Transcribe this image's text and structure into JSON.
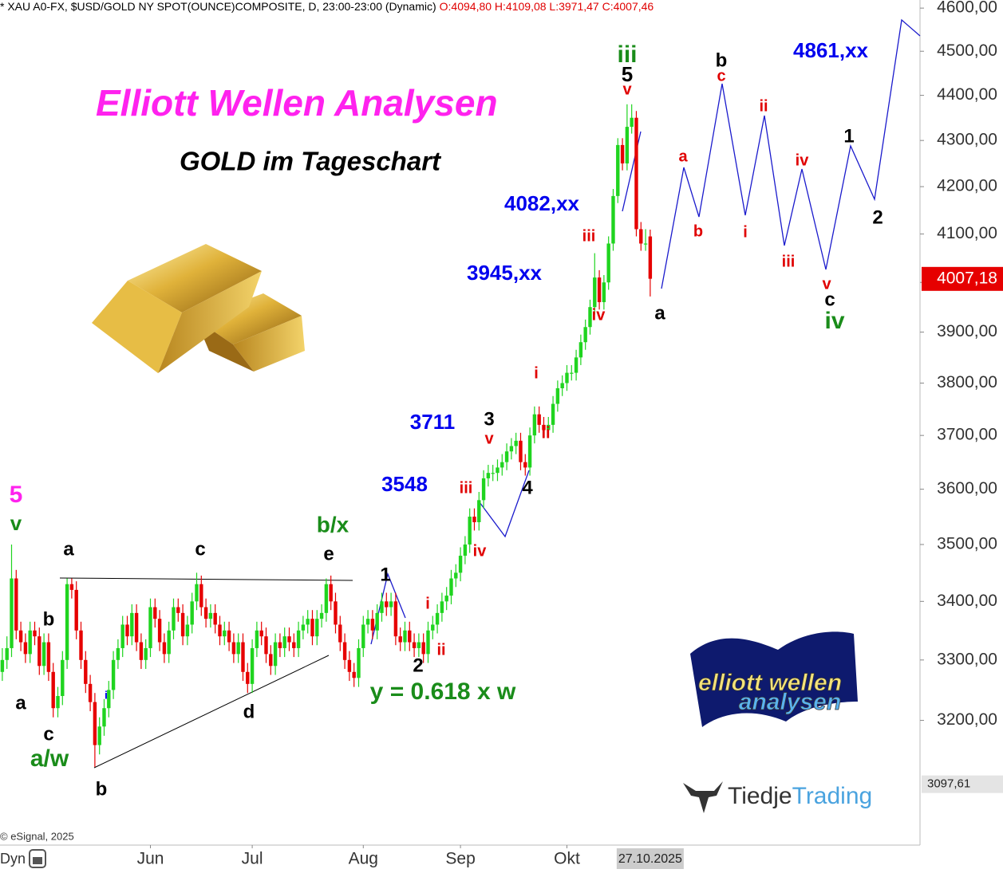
{
  "chart_data": {
    "type": "candlestick",
    "header": "* XAU A0-FX, $USD/GOLD NY SPOT(OUNCE)COMPOSITE, D, 23:00-23:00 (Dynamic)",
    "header_ohlc": "O:4094,80 H:4109,08 L:3971,47 C:4007,46",
    "title": "Elliott Wellen Analysen",
    "subtitle": "GOLD im Tageschart",
    "up_color": "#1fd41f",
    "down_color": "#e60000",
    "log_scale": true,
    "grid": false,
    "ylim": [
      3003,
      4619
    ],
    "yticks": [
      {
        "value": 3200,
        "label": "3200,00"
      },
      {
        "value": 3300,
        "label": "3300,00"
      },
      {
        "value": 3400,
        "label": "3400,00"
      },
      {
        "value": 3500,
        "label": "3500,00"
      },
      {
        "value": 3600,
        "label": "3600,00"
      },
      {
        "value": 3700,
        "label": "3700,00"
      },
      {
        "value": 3800,
        "label": "3800,00"
      },
      {
        "value": 3900,
        "label": "3900,00"
      },
      {
        "value": 4000,
        "label": "4000,00"
      },
      {
        "value": 4100,
        "label": "4100,00"
      },
      {
        "value": 4200,
        "label": "4200,00"
      },
      {
        "value": 4300,
        "label": "4300,00"
      },
      {
        "value": 4400,
        "label": "4400,00"
      },
      {
        "value": 4500,
        "label": "4500,00"
      },
      {
        "value": 4600,
        "label": "4600,00"
      }
    ],
    "xlim": [
      -0.5,
      198.3
    ],
    "xticks": [
      {
        "value": 32,
        "label": "Jun"
      },
      {
        "value": 54,
        "label": "Jul"
      },
      {
        "value": 78,
        "label": "Aug"
      },
      {
        "value": 99,
        "label": "Sep"
      },
      {
        "value": 122,
        "label": "Okt"
      }
    ],
    "date_marker": {
      "value": 140,
      "label": "27.10.2025"
    },
    "price_markers": [
      {
        "value": 4007.18,
        "label": "4007,18",
        "color": "#e60000"
      },
      {
        "value": 3097.61,
        "label": "3097,61",
        "color": "#e4e4e4"
      }
    ],
    "ohlc": [
      [
        3280,
        3320,
        3265,
        3300
      ],
      [
        3300,
        3340,
        3285,
        3320
      ],
      [
        3320,
        3500,
        3305,
        3440
      ],
      [
        3440,
        3455,
        3335,
        3350
      ],
      [
        3350,
        3365,
        3315,
        3330
      ],
      [
        3330,
        3345,
        3295,
        3310
      ],
      [
        3310,
        3365,
        3295,
        3350
      ],
      [
        3350,
        3365,
        3325,
        3340
      ],
      [
        3340,
        3355,
        3275,
        3290
      ],
      [
        3290,
        3345,
        3275,
        3330
      ],
      [
        3330,
        3345,
        3265,
        3280
      ],
      [
        3280,
        3295,
        3205,
        3220
      ],
      [
        3220,
        3255,
        3205,
        3240
      ],
      [
        3240,
        3315,
        3225,
        3300
      ],
      [
        3300,
        3440,
        3285,
        3430
      ],
      [
        3430,
        3440,
        3405,
        3420
      ],
      [
        3420,
        3435,
        3335,
        3350
      ],
      [
        3350,
        3365,
        3285,
        3300
      ],
      [
        3300,
        3315,
        3245,
        3260
      ],
      [
        3260,
        3275,
        3215,
        3230
      ],
      [
        3230,
        3245,
        3125,
        3160
      ],
      [
        3160,
        3205,
        3145,
        3190
      ],
      [
        3190,
        3235,
        3175,
        3220
      ],
      [
        3220,
        3265,
        3205,
        3250
      ],
      [
        3250,
        3315,
        3235,
        3300
      ],
      [
        3300,
        3335,
        3285,
        3320
      ],
      [
        3320,
        3375,
        3305,
        3360
      ],
      [
        3360,
        3375,
        3325,
        3340
      ],
      [
        3340,
        3395,
        3325,
        3380
      ],
      [
        3380,
        3395,
        3315,
        3330
      ],
      [
        3330,
        3345,
        3285,
        3300
      ],
      [
        3300,
        3335,
        3285,
        3320
      ],
      [
        3320,
        3405,
        3305,
        3390
      ],
      [
        3390,
        3405,
        3355,
        3370
      ],
      [
        3370,
        3385,
        3315,
        3330
      ],
      [
        3330,
        3345,
        3295,
        3310
      ],
      [
        3310,
        3365,
        3295,
        3350
      ],
      [
        3350,
        3405,
        3335,
        3390
      ],
      [
        3390,
        3405,
        3365,
        3380
      ],
      [
        3380,
        3395,
        3325,
        3340
      ],
      [
        3340,
        3375,
        3325,
        3360
      ],
      [
        3360,
        3415,
        3345,
        3400
      ],
      [
        3400,
        3450,
        3385,
        3430
      ],
      [
        3430,
        3445,
        3375,
        3390
      ],
      [
        3390,
        3405,
        3355,
        3370
      ],
      [
        3370,
        3395,
        3355,
        3380
      ],
      [
        3380,
        3395,
        3345,
        3360
      ],
      [
        3360,
        3375,
        3325,
        3340
      ],
      [
        3340,
        3365,
        3325,
        3350
      ],
      [
        3350,
        3365,
        3315,
        3330
      ],
      [
        3330,
        3345,
        3295,
        3310
      ],
      [
        3310,
        3345,
        3295,
        3330
      ],
      [
        3330,
        3345,
        3265,
        3280
      ],
      [
        3280,
        3295,
        3245,
        3260
      ],
      [
        3260,
        3335,
        3245,
        3320
      ],
      [
        3320,
        3365,
        3305,
        3350
      ],
      [
        3350,
        3365,
        3325,
        3340
      ],
      [
        3340,
        3355,
        3295,
        3310
      ],
      [
        3310,
        3325,
        3275,
        3290
      ],
      [
        3290,
        3345,
        3275,
        3330
      ],
      [
        3330,
        3345,
        3305,
        3320
      ],
      [
        3320,
        3355,
        3305,
        3340
      ],
      [
        3340,
        3355,
        3315,
        3330
      ],
      [
        3330,
        3345,
        3305,
        3320
      ],
      [
        3320,
        3365,
        3305,
        3350
      ],
      [
        3350,
        3375,
        3335,
        3360
      ],
      [
        3360,
        3385,
        3345,
        3370
      ],
      [
        3370,
        3385,
        3325,
        3340
      ],
      [
        3340,
        3385,
        3325,
        3370
      ],
      [
        3370,
        3395,
        3355,
        3380
      ],
      [
        3380,
        3440,
        3365,
        3430
      ],
      [
        3430,
        3445,
        3385,
        3400
      ],
      [
        3400,
        3415,
        3345,
        3360
      ],
      [
        3360,
        3375,
        3315,
        3330
      ],
      [
        3330,
        3345,
        3285,
        3300
      ],
      [
        3300,
        3315,
        3265,
        3280
      ],
      [
        3280,
        3295,
        3255,
        3270
      ],
      [
        3270,
        3335,
        3255,
        3320
      ],
      [
        3320,
        3375,
        3305,
        3360
      ],
      [
        3360,
        3385,
        3345,
        3370
      ],
      [
        3370,
        3385,
        3335,
        3350
      ],
      [
        3350,
        3395,
        3335,
        3380
      ],
      [
        3380,
        3415,
        3365,
        3400
      ],
      [
        3400,
        3415,
        3375,
        3390
      ],
      [
        3390,
        3415,
        3375,
        3400
      ],
      [
        3400,
        3415,
        3325,
        3340
      ],
      [
        3340,
        3355,
        3315,
        3330
      ],
      [
        3330,
        3365,
        3315,
        3350
      ],
      [
        3350,
        3365,
        3315,
        3330
      ],
      [
        3330,
        3345,
        3305,
        3320
      ],
      [
        3320,
        3345,
        3305,
        3330
      ],
      [
        3330,
        3345,
        3295,
        3310
      ],
      [
        3310,
        3365,
        3295,
        3350
      ],
      [
        3350,
        3375,
        3335,
        3360
      ],
      [
        3360,
        3395,
        3345,
        3380
      ],
      [
        3380,
        3415,
        3365,
        3400
      ],
      [
        3400,
        3425,
        3385,
        3410
      ],
      [
        3410,
        3455,
        3395,
        3440
      ],
      [
        3440,
        3465,
        3425,
        3450
      ],
      [
        3450,
        3495,
        3435,
        3480
      ],
      [
        3480,
        3515,
        3465,
        3500
      ],
      [
        3500,
        3565,
        3485,
        3550
      ],
      [
        3550,
        3565,
        3525,
        3540
      ],
      [
        3540,
        3595,
        3525,
        3580
      ],
      [
        3580,
        3635,
        3565,
        3620
      ],
      [
        3620,
        3645,
        3605,
        3630
      ],
      [
        3630,
        3645,
        3615,
        3630
      ],
      [
        3630,
        3655,
        3615,
        3640
      ],
      [
        3640,
        3665,
        3625,
        3650
      ],
      [
        3650,
        3685,
        3635,
        3670
      ],
      [
        3670,
        3695,
        3655,
        3680
      ],
      [
        3680,
        3705,
        3665,
        3690
      ],
      [
        3690,
        3705,
        3635,
        3650
      ],
      [
        3650,
        3665,
        3625,
        3640
      ],
      [
        3640,
        3715,
        3625,
        3700
      ],
      [
        3700,
        3755,
        3685,
        3740
      ],
      [
        3740,
        3755,
        3705,
        3720
      ],
      [
        3720,
        3735,
        3695,
        3710
      ],
      [
        3710,
        3735,
        3695,
        3720
      ],
      [
        3720,
        3775,
        3705,
        3760
      ],
      [
        3760,
        3805,
        3745,
        3790
      ],
      [
        3790,
        3815,
        3775,
        3800
      ],
      [
        3800,
        3835,
        3785,
        3820
      ],
      [
        3820,
        3835,
        3805,
        3820
      ],
      [
        3820,
        3865,
        3805,
        3850
      ],
      [
        3850,
        3895,
        3835,
        3880
      ],
      [
        3880,
        3925,
        3865,
        3910
      ],
      [
        3910,
        3965,
        3895,
        3950
      ],
      [
        3950,
        4060,
        3935,
        4010
      ],
      [
        4010,
        4025,
        3945,
        3960
      ],
      [
        3960,
        4015,
        3945,
        4000
      ],
      [
        4000,
        4095,
        3985,
        4080
      ],
      [
        4080,
        4195,
        4065,
        4180
      ],
      [
        4180,
        4305,
        4165,
        4290
      ],
      [
        4290,
        4305,
        4235,
        4250
      ],
      [
        4250,
        4380,
        4235,
        4330
      ],
      [
        4330,
        4380,
        4315,
        4350
      ],
      [
        4350,
        4365,
        4095,
        4110
      ],
      [
        4110,
        4125,
        4065,
        4080
      ],
      [
        4080,
        4110,
        4065,
        4080
      ],
      [
        4094.8,
        4109.08,
        3971.47,
        4007.46
      ]
    ],
    "annotations": [
      {
        "text": "4861,xx",
        "color": "#0000ee"
      },
      {
        "text": "4082,xx",
        "color": "#0000ee"
      },
      {
        "text": "3945,xx",
        "color": "#0000ee"
      },
      {
        "text": "3711",
        "color": "#0000ee"
      },
      {
        "text": "3548",
        "color": "#0000ee"
      },
      {
        "text": "iii",
        "color": "#1a8c1a"
      },
      {
        "text": "5",
        "color": "#000000"
      },
      {
        "text": "v",
        "color": "#e00000"
      },
      {
        "text": "b",
        "color": "#000000"
      },
      {
        "text": "c",
        "color": "#e00000"
      },
      {
        "text": "a",
        "color": "#e00000"
      },
      {
        "text": "b",
        "color": "#e00000"
      },
      {
        "text": "i",
        "color": "#e00000"
      },
      {
        "text": "ii",
        "color": "#e00000"
      },
      {
        "text": "iii",
        "color": "#e00000"
      },
      {
        "text": "iv",
        "color": "#e00000"
      },
      {
        "text": "v",
        "color": "#e00000"
      },
      {
        "text": "c",
        "color": "#000000"
      },
      {
        "text": "iv",
        "color": "#1a8c1a"
      },
      {
        "text": "1",
        "color": "#000000"
      },
      {
        "text": "2",
        "color": "#000000"
      },
      {
        "text": "iii",
        "color": "#e00000"
      },
      {
        "text": "iv",
        "color": "#e00000"
      },
      {
        "text": "a",
        "color": "#000000"
      },
      {
        "text": "i",
        "color": "#e00000"
      },
      {
        "text": "ii",
        "color": "#e00000"
      },
      {
        "text": "3",
        "color": "#000000"
      },
      {
        "text": "v",
        "color": "#e00000"
      },
      {
        "text": "4",
        "color": "#000000"
      },
      {
        "text": "iii",
        "color": "#e00000"
      },
      {
        "text": "iv",
        "color": "#e00000"
      },
      {
        "text": "i",
        "color": "#e00000"
      },
      {
        "text": "ii",
        "color": "#e00000"
      },
      {
        "text": "1",
        "color": "#000000"
      },
      {
        "text": "2",
        "color": "#000000"
      },
      {
        "text": "y = 0.618 x w",
        "color": "#1a8c1a"
      },
      {
        "text": "b/x",
        "color": "#1a8c1a"
      },
      {
        "text": "e",
        "color": "#000000"
      },
      {
        "text": "c",
        "color": "#000000"
      },
      {
        "text": "a",
        "color": "#000000"
      },
      {
        "text": "b",
        "color": "#000000"
      },
      {
        "text": "a",
        "color": "#000000"
      },
      {
        "text": "c",
        "color": "#000000"
      },
      {
        "text": "a/w",
        "color": "#1a8c1a"
      },
      {
        "text": "b",
        "color": "#000000"
      },
      {
        "text": "d",
        "color": "#000000"
      },
      {
        "text": "5",
        "color": "#ff22ee"
      },
      {
        "text": "v",
        "color": "#1a8c1a"
      },
      {
        "text": "i",
        "color": "#0000ee"
      }
    ],
    "copyright": "© eSignal, 2025",
    "toolbar": "Dyn",
    "logos": {
      "ewa_top": "elliott wellen",
      "ewa_bottom": "analysen",
      "tiedje": "Tiedje",
      "trading": "Trading"
    }
  }
}
